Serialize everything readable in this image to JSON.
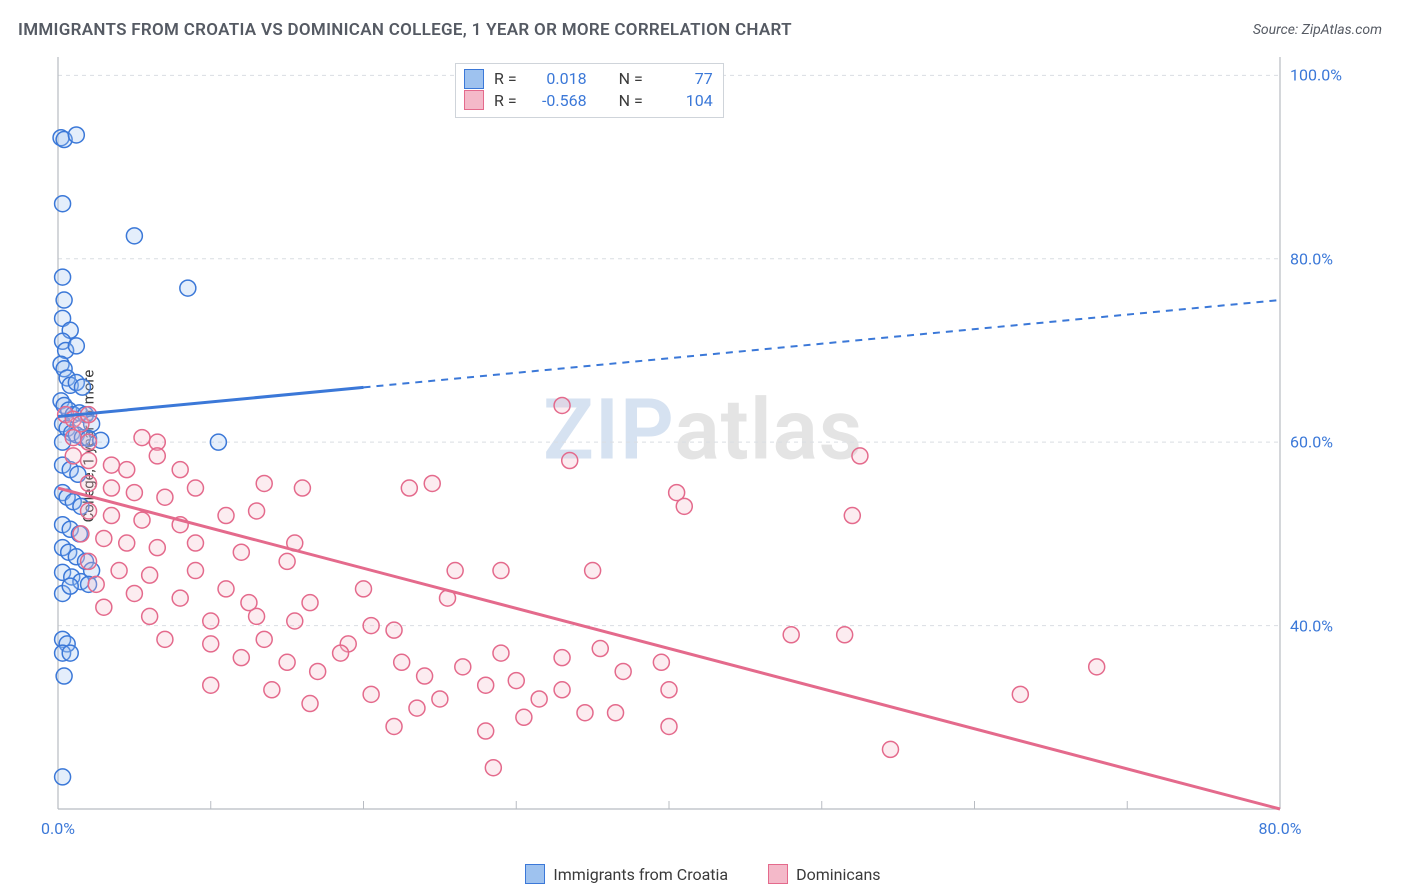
{
  "title": "IMMIGRANTS FROM CROATIA VS DOMINICAN COLLEGE, 1 YEAR OR MORE CORRELATION CHART",
  "source_label": "Source:",
  "source_name": "ZipAtlas.com",
  "y_axis_label": "College, 1 year or more",
  "watermark": {
    "left": "ZIP",
    "right": "atlas"
  },
  "chart": {
    "type": "scatter+regression",
    "background_color": "#ffffff",
    "grid_color": "#d9dde2",
    "grid_dash": "4,4",
    "axis_color": "#b8bcc2",
    "tick_label_color": "#3b78d8",
    "tick_fontsize": 16,
    "marker_radius": 8,
    "marker_stroke_width": 1.5,
    "fill_opacity": 0.28,
    "xlim": [
      0,
      80
    ],
    "ylim": [
      20,
      102
    ],
    "xtick_step": 10,
    "xticks_labeled": [
      0,
      80
    ],
    "yticks": [
      40,
      60,
      80,
      100
    ],
    "xtick_suffix": ".0%",
    "ytick_suffix": ".0%"
  },
  "series": [
    {
      "key": "croatia",
      "label": "Immigrants from Croatia",
      "color_stroke": "#3b78d8",
      "color_fill": "#9ec2ef",
      "R": "0.018",
      "N": "77",
      "reg": {
        "x1": 0,
        "y1": 62.8,
        "x2": 80,
        "y2": 75.5,
        "solid_until_x": 20
      },
      "points": [
        [
          0.2,
          93.2
        ],
        [
          0.4,
          93.0
        ],
        [
          1.2,
          93.5
        ],
        [
          0.3,
          86.0
        ],
        [
          5.0,
          82.5
        ],
        [
          0.3,
          78.0
        ],
        [
          0.4,
          75.5
        ],
        [
          8.5,
          76.8
        ],
        [
          0.3,
          73.5
        ],
        [
          0.8,
          72.2
        ],
        [
          0.3,
          71.0
        ],
        [
          0.5,
          70.0
        ],
        [
          1.2,
          70.5
        ],
        [
          0.2,
          68.5
        ],
        [
          0.4,
          68.0
        ],
        [
          0.6,
          67.0
        ],
        [
          0.8,
          66.2
        ],
        [
          1.2,
          66.5
        ],
        [
          1.6,
          66.0
        ],
        [
          0.2,
          64.5
        ],
        [
          0.4,
          64.0
        ],
        [
          0.7,
          63.5
        ],
        [
          1.0,
          63.0
        ],
        [
          1.4,
          63.2
        ],
        [
          1.8,
          63.0
        ],
        [
          0.3,
          62.0
        ],
        [
          0.6,
          61.5
        ],
        [
          0.9,
          61.0
        ],
        [
          1.2,
          60.8
        ],
        [
          1.6,
          60.5
        ],
        [
          2.2,
          62.0
        ],
        [
          0.3,
          60.0
        ],
        [
          2.0,
          60.4
        ],
        [
          2.8,
          60.2
        ],
        [
          10.5,
          60.0
        ],
        [
          0.3,
          57.5
        ],
        [
          0.8,
          57.0
        ],
        [
          1.3,
          56.5
        ],
        [
          0.3,
          54.5
        ],
        [
          0.6,
          54.0
        ],
        [
          1.0,
          53.5
        ],
        [
          1.5,
          53.0
        ],
        [
          0.3,
          51.0
        ],
        [
          0.8,
          50.5
        ],
        [
          1.4,
          50.0
        ],
        [
          0.3,
          48.5
        ],
        [
          0.7,
          48.0
        ],
        [
          1.2,
          47.5
        ],
        [
          1.8,
          47.0
        ],
        [
          0.3,
          45.8
        ],
        [
          0.9,
          45.3
        ],
        [
          1.5,
          44.8
        ],
        [
          2.2,
          46.0
        ],
        [
          2.0,
          44.5
        ],
        [
          0.3,
          43.5
        ],
        [
          0.8,
          44.3
        ],
        [
          0.3,
          38.5
        ],
        [
          0.6,
          38.0
        ],
        [
          0.3,
          37.0
        ],
        [
          0.8,
          37.0
        ],
        [
          0.4,
          34.5
        ],
        [
          0.3,
          23.5
        ]
      ]
    },
    {
      "key": "dominicans",
      "label": "Dominicans",
      "color_stroke": "#e46a8c",
      "color_fill": "#f4b9c9",
      "R": "-0.568",
      "N": "104",
      "reg": {
        "x1": 0,
        "y1": 55.0,
        "x2": 80,
        "y2": 20.0,
        "solid_until_x": 80
      },
      "points": [
        [
          0.5,
          63.0
        ],
        [
          1.0,
          62.5
        ],
        [
          1.5,
          62.0
        ],
        [
          2.0,
          63.0
        ],
        [
          1.0,
          60.5
        ],
        [
          2.0,
          60.0
        ],
        [
          5.5,
          60.5
        ],
        [
          6.5,
          60.0
        ],
        [
          33.0,
          64.0
        ],
        [
          1.0,
          58.5
        ],
        [
          2.0,
          58.0
        ],
        [
          3.5,
          57.5
        ],
        [
          4.5,
          57.0
        ],
        [
          6.5,
          58.5
        ],
        [
          8.0,
          57.0
        ],
        [
          33.5,
          58.0
        ],
        [
          52.5,
          58.5
        ],
        [
          2.0,
          55.5
        ],
        [
          3.5,
          55.0
        ],
        [
          5.0,
          54.5
        ],
        [
          7.0,
          54.0
        ],
        [
          9.0,
          55.0
        ],
        [
          13.5,
          55.5
        ],
        [
          16.0,
          55.0
        ],
        [
          23.0,
          55.0
        ],
        [
          24.5,
          55.5
        ],
        [
          2.0,
          52.5
        ],
        [
          3.5,
          52.0
        ],
        [
          5.5,
          51.5
        ],
        [
          8.0,
          51.0
        ],
        [
          11.0,
          52.0
        ],
        [
          13.0,
          52.5
        ],
        [
          40.5,
          54.5
        ],
        [
          41.0,
          53.0
        ],
        [
          52.0,
          52.0
        ],
        [
          1.5,
          50.0
        ],
        [
          3.0,
          49.5
        ],
        [
          4.5,
          49.0
        ],
        [
          6.5,
          48.5
        ],
        [
          9.0,
          49.0
        ],
        [
          12.0,
          48.0
        ],
        [
          15.5,
          49.0
        ],
        [
          2.0,
          47.0
        ],
        [
          4.0,
          46.0
        ],
        [
          6.0,
          45.5
        ],
        [
          9.0,
          46.0
        ],
        [
          15.0,
          47.0
        ],
        [
          26.0,
          46.0
        ],
        [
          29.0,
          46.0
        ],
        [
          35.0,
          46.0
        ],
        [
          2.5,
          44.5
        ],
        [
          5.0,
          43.5
        ],
        [
          8.0,
          43.0
        ],
        [
          11.0,
          44.0
        ],
        [
          12.5,
          42.5
        ],
        [
          16.5,
          42.5
        ],
        [
          20.0,
          44.0
        ],
        [
          25.5,
          43.0
        ],
        [
          3.0,
          42.0
        ],
        [
          6.0,
          41.0
        ],
        [
          10.0,
          40.5
        ],
        [
          13.0,
          41.0
        ],
        [
          15.5,
          40.5
        ],
        [
          20.5,
          40.0
        ],
        [
          7.0,
          38.5
        ],
        [
          10.0,
          38.0
        ],
        [
          13.5,
          38.5
        ],
        [
          19.0,
          38.0
        ],
        [
          22.0,
          39.5
        ],
        [
          48.0,
          39.0
        ],
        [
          51.5,
          39.0
        ],
        [
          12.0,
          36.5
        ],
        [
          15.0,
          36.0
        ],
        [
          18.5,
          37.0
        ],
        [
          22.5,
          36.0
        ],
        [
          29.0,
          37.0
        ],
        [
          33.0,
          36.5
        ],
        [
          35.5,
          37.5
        ],
        [
          39.5,
          36.0
        ],
        [
          17.0,
          35.0
        ],
        [
          24.0,
          34.5
        ],
        [
          30.0,
          34.0
        ],
        [
          37.0,
          35.0
        ],
        [
          68.0,
          35.5
        ],
        [
          10.0,
          33.5
        ],
        [
          14.0,
          33.0
        ],
        [
          20.5,
          32.5
        ],
        [
          25.0,
          32.0
        ],
        [
          26.5,
          35.5
        ],
        [
          28.0,
          33.5
        ],
        [
          33.0,
          33.0
        ],
        [
          40.0,
          33.0
        ],
        [
          63.0,
          32.5
        ],
        [
          16.5,
          31.5
        ],
        [
          23.5,
          31.0
        ],
        [
          30.5,
          30.0
        ],
        [
          31.5,
          32.0
        ],
        [
          36.5,
          30.5
        ],
        [
          22.0,
          29.0
        ],
        [
          28.0,
          28.5
        ],
        [
          34.5,
          30.5
        ],
        [
          40.0,
          29.0
        ],
        [
          54.5,
          26.5
        ],
        [
          28.5,
          24.5
        ]
      ]
    }
  ],
  "stats_legend": {
    "r_label": "R =",
    "n_label": "N ="
  }
}
